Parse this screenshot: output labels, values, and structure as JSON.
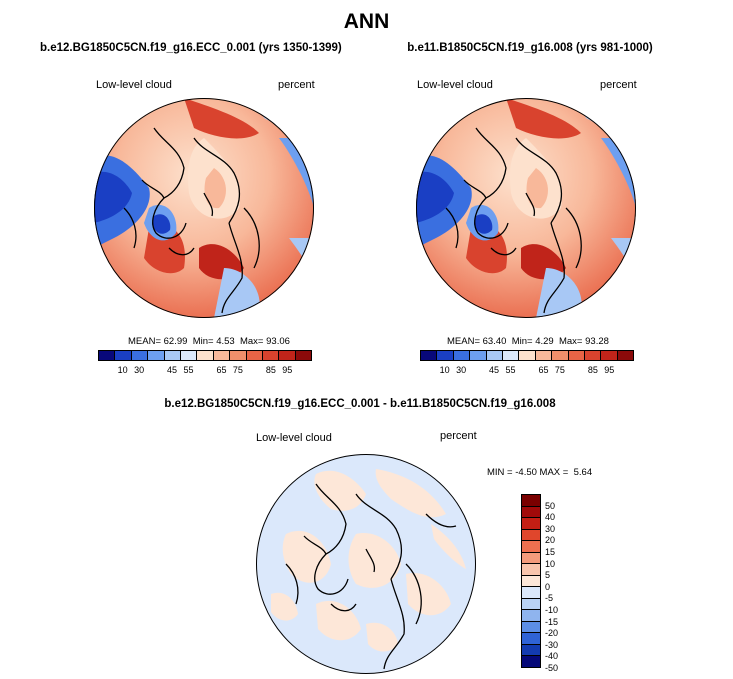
{
  "figure": {
    "main_title": "ANN"
  },
  "panels": {
    "left": {
      "title": "b.e12.BG1850C5CN.f19_g16.ECC_0.001 (yrs 1350-1399)",
      "variable": "Low-level cloud",
      "units": "percent",
      "mean_label": "MEAN=",
      "mean": "62.99",
      "min_label": "Min=",
      "min": "4.53",
      "max_label": "Max=",
      "max": "93.06",
      "colorbar_ticks": [
        "10",
        "30",
        "45",
        "55",
        "65",
        "75",
        "85",
        "95"
      ]
    },
    "right": {
      "title": "b.e11.B1850C5CN.f19_g16.008 (yrs 981-1000)",
      "variable": "Low-level cloud",
      "units": "percent",
      "mean_label": "MEAN=",
      "mean": "63.40",
      "min_label": "Min=",
      "min": "4.29",
      "max_label": "Max=",
      "max": "93.28",
      "colorbar_ticks": [
        "10",
        "30",
        "45",
        "55",
        "65",
        "75",
        "85",
        "95"
      ]
    },
    "diff": {
      "title": "b.e12.BG1850C5CN.f19_g16.ECC_0.001 - b.e11.B1850C5CN.f19_g16.008",
      "variable": "Low-level cloud",
      "units": "percent",
      "min_label": "MIN =",
      "min": "-4.50",
      "max_label": "MAX =",
      "max": "5.64",
      "colorbar_ticks": [
        "50",
        "40",
        "30",
        "20",
        "15",
        "10",
        "5",
        "0",
        "-5",
        "-10",
        "-15",
        "-20",
        "-30",
        "-40",
        "-50"
      ]
    }
  },
  "colors": {
    "seq_scale": [
      "#08087a",
      "#1a3fc4",
      "#3a6fe0",
      "#6d9ff0",
      "#a8c8f5",
      "#dce9fb",
      "#fde1cd",
      "#f8b89a",
      "#f08f6b",
      "#e86446",
      "#d9432e",
      "#c0241a",
      "#8b0a0a"
    ],
    "diff_scale": [
      "#7a0000",
      "#a10a0a",
      "#c41e14",
      "#e0462c",
      "#ee7050",
      "#f49b7c",
      "#f9c5ad",
      "#fde7d8",
      "#dbe8fb",
      "#b9d2f5",
      "#8fb4ee",
      "#5c8ee6",
      "#2f63d6",
      "#133bb0",
      "#050878"
    ]
  }
}
